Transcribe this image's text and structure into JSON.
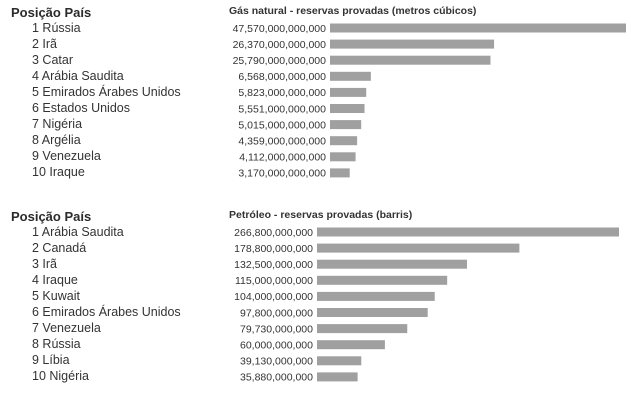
{
  "chart_data": [
    {
      "type": "bar",
      "orientation": "horizontal",
      "title": "Gás natural - reservas provadas (metros cúbicos)",
      "rank_header": "Posição País",
      "categories": [
        "1 Rússia",
        "2 Irã",
        "3 Catar",
        "4 Arábia Saudita",
        "5 Emirados Árabes Unidos",
        "6 Estados Unidos",
        "7 Nigéria",
        "8 Argélia",
        "9 Venezuela",
        "10 Iraque"
      ],
      "values": [
        47570000000000,
        26370000000000,
        25790000000000,
        6568000000000,
        5823000000000,
        5551000000000,
        5015000000000,
        4359000000000,
        4112000000000,
        3170000000000
      ],
      "value_labels": [
        "47,570,000,000,000",
        "26,370,000,000,000",
        "25,790,000,000,000",
        "6,568,000,000,000",
        "5,823,000,000,000",
        "5,551,000,000,000",
        "5,015,000,000,000",
        "4,359,000,000,000",
        "4,112,000,000,000",
        "3,170,000,000,000"
      ],
      "bar_color": "#a0a0a0"
    },
    {
      "type": "bar",
      "orientation": "horizontal",
      "title": "Petróleo - reservas provadas (barris)",
      "rank_header": "Posição País",
      "categories": [
        "1 Arábia Saudita",
        "2 Canadá",
        "3 Irã",
        "4 Iraque",
        "5 Kuwait",
        "6 Emirados Árabes Unidos",
        "7 Venezuela",
        "8 Rússia",
        "9 Líbia",
        "10 Nigéria"
      ],
      "values": [
        266800000000,
        178800000000,
        132500000000,
        115000000000,
        104000000000,
        97800000000,
        79730000000,
        60000000000,
        39130000000,
        35880000000
      ],
      "value_labels": [
        "266,800,000,000",
        "178,800,000,000",
        "132,500,000,000",
        "115,000,000,000",
        "104,000,000,000",
        "97,800,000,000",
        "79,730,000,000",
        "60,000,000,000",
        "39,130,000,000",
        "35,880,000,000"
      ],
      "bar_color": "#a0a0a0"
    }
  ]
}
